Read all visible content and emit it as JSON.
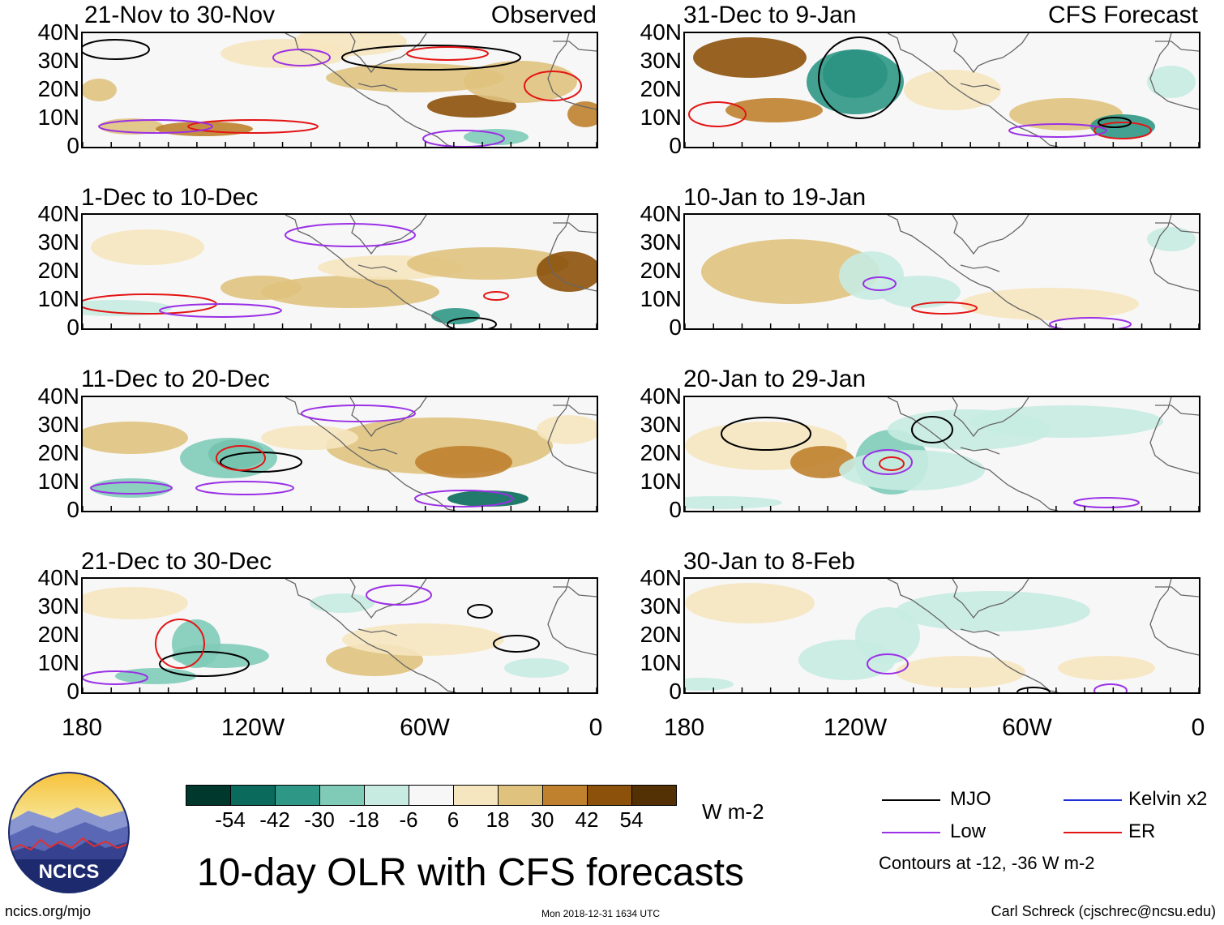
{
  "title": "10-day OLR with CFS forecasts",
  "panels": [
    {
      "id": "p1",
      "title": "21-Nov to 30-Nov",
      "tag": "Observed"
    },
    {
      "id": "p2",
      "title": "1-Dec to 10-Dec",
      "tag": ""
    },
    {
      "id": "p3",
      "title": "11-Dec to 20-Dec",
      "tag": ""
    },
    {
      "id": "p4",
      "title": "21-Dec to 30-Dec",
      "tag": ""
    },
    {
      "id": "p5",
      "title": "31-Dec to 9-Jan",
      "tag": "CFS Forecast"
    },
    {
      "id": "p6",
      "title": "10-Jan to 19-Jan",
      "tag": ""
    },
    {
      "id": "p7",
      "title": "20-Jan to 29-Jan",
      "tag": ""
    },
    {
      "id": "p8",
      "title": "30-Jan to 8-Feb",
      "tag": ""
    }
  ],
  "lat_labels": [
    "40N",
    "30N",
    "20N",
    "10N",
    "0"
  ],
  "lon_labels": [
    "180",
    "120W",
    "60W",
    "0"
  ],
  "colorbar": {
    "ticks": [
      "-54",
      "-42",
      "-30",
      "-18",
      "-6",
      "6",
      "18",
      "30",
      "42",
      "54"
    ],
    "colors": [
      "#00382e",
      "#0a6b5c",
      "#2f9786",
      "#7fcbb8",
      "#c7ebe1",
      "#f7f7f7",
      "#f6e6bf",
      "#dfc27d",
      "#bf812d",
      "#8c510a",
      "#543005"
    ],
    "units": "W m-2"
  },
  "legend": [
    {
      "label": "MJO",
      "color": "#000000"
    },
    {
      "label": "Kelvin x2",
      "color": "#1f2fd6"
    },
    {
      "label": "Low",
      "color": "#9b30e6"
    },
    {
      "label": "ER",
      "color": "#e31414"
    }
  ],
  "contour_note": "Contours at -12, -36 W m-2",
  "logo_text": "NCICS",
  "footer": {
    "left": "ncics.org/mjo",
    "center": "Mon 2018-12-31 1634 UTC",
    "right": "Carl Schreck (cjschrec@ncsu.edu)"
  }
}
